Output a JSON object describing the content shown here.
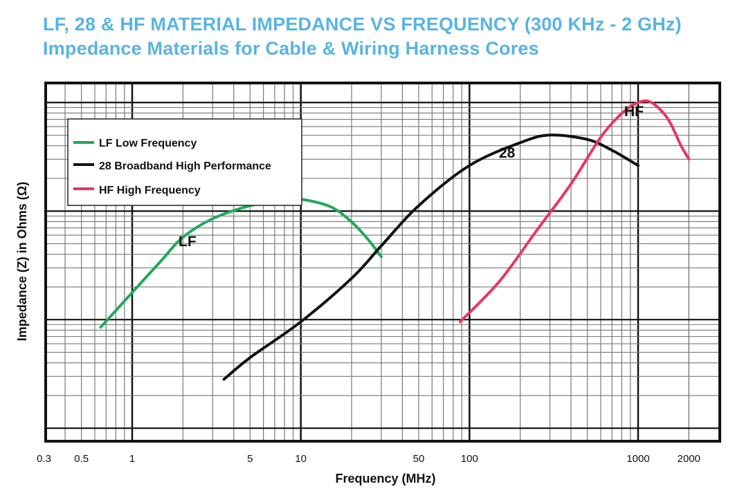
{
  "header": {
    "title": "LF, 28 & HF MATERIAL IMPEDANCE VS FREQUENCY (300 KHz - 2 GHz)",
    "subtitle": "Impedance Materials for Cable & Wiring Harness Cores"
  },
  "chart_data": {
    "type": "line",
    "title": "LF, 28 & HF MATERIAL IMPEDANCE VS FREQUENCY (300 KHz - 2 GHz)",
    "subtitle": "Impedance Materials for Cable & Wiring Harness Cores",
    "xlabel": "Frequency (MHz)",
    "ylabel": "Impedance (Z) in Ohms (Ω)",
    "x_scale": "log",
    "xlim": [
      0.3,
      2000
    ],
    "x_ticks": [
      0.3,
      0.5,
      1,
      5,
      10,
      50,
      100,
      1000,
      2000
    ],
    "x_tick_labels": [
      "0.3",
      "0.5",
      "1",
      "5",
      "10",
      "50",
      "100",
      "1000",
      "2000"
    ],
    "y_scale": "log",
    "y_tick_labels": [],
    "ylim_decades": [
      0,
      3
    ],
    "grid": true,
    "legend_position": "top-left",
    "colors": {
      "LF": "#1faa59",
      "28": "#111111",
      "HF": "#e8365f",
      "title": "#58b4e1"
    },
    "series": [
      {
        "name": "LF Low Frequency",
        "label": "LF",
        "color": "#1faa59",
        "points": [
          {
            "x": 0.65,
            "y": 0.93
          },
          {
            "x": 1.0,
            "y": 1.25
          },
          {
            "x": 1.5,
            "y": 1.55
          },
          {
            "x": 2.0,
            "y": 1.76
          },
          {
            "x": 3.0,
            "y": 1.93
          },
          {
            "x": 5.0,
            "y": 2.05
          },
          {
            "x": 8.0,
            "y": 2.11
          },
          {
            "x": 10.0,
            "y": 2.11
          },
          {
            "x": 15.0,
            "y": 2.04
          },
          {
            "x": 20.0,
            "y": 1.9
          },
          {
            "x": 25.0,
            "y": 1.74
          },
          {
            "x": 30.0,
            "y": 1.58
          }
        ]
      },
      {
        "name": "28 Broadband High Performance",
        "label": "28",
        "color": "#111111",
        "points": [
          {
            "x": 3.5,
            "y": 0.45
          },
          {
            "x": 5.0,
            "y": 0.65
          },
          {
            "x": 10.0,
            "y": 0.98
          },
          {
            "x": 20.0,
            "y": 1.38
          },
          {
            "x": 30.0,
            "y": 1.68
          },
          {
            "x": 50.0,
            "y": 2.05
          },
          {
            "x": 100.0,
            "y": 2.42
          },
          {
            "x": 200.0,
            "y": 2.63
          },
          {
            "x": 300.0,
            "y": 2.7
          },
          {
            "x": 500.0,
            "y": 2.66
          },
          {
            "x": 700.0,
            "y": 2.56
          },
          {
            "x": 1000.0,
            "y": 2.42
          }
        ]
      },
      {
        "name": "HF High Frequency",
        "label": "HF",
        "color": "#e8365f",
        "points": [
          {
            "x": 88.0,
            "y": 0.98
          },
          {
            "x": 150.0,
            "y": 1.35
          },
          {
            "x": 250.0,
            "y": 1.82
          },
          {
            "x": 400.0,
            "y": 2.25
          },
          {
            "x": 600.0,
            "y": 2.68
          },
          {
            "x": 800.0,
            "y": 2.9
          },
          {
            "x": 1000.0,
            "y": 3.0
          },
          {
            "x": 1200.0,
            "y": 3.0
          },
          {
            "x": 1500.0,
            "y": 2.85
          },
          {
            "x": 1800.0,
            "y": 2.6
          },
          {
            "x": 2000.0,
            "y": 2.48
          }
        ]
      }
    ],
    "legend": [
      {
        "label": "LF Low Frequency",
        "color": "#1faa59"
      },
      {
        "label": "28 Broadband High Performance",
        "color": "#111111"
      },
      {
        "label": "HF High Frequency",
        "color": "#e8365f"
      }
    ],
    "annotations": [
      "LF",
      "28",
      "HF"
    ]
  }
}
